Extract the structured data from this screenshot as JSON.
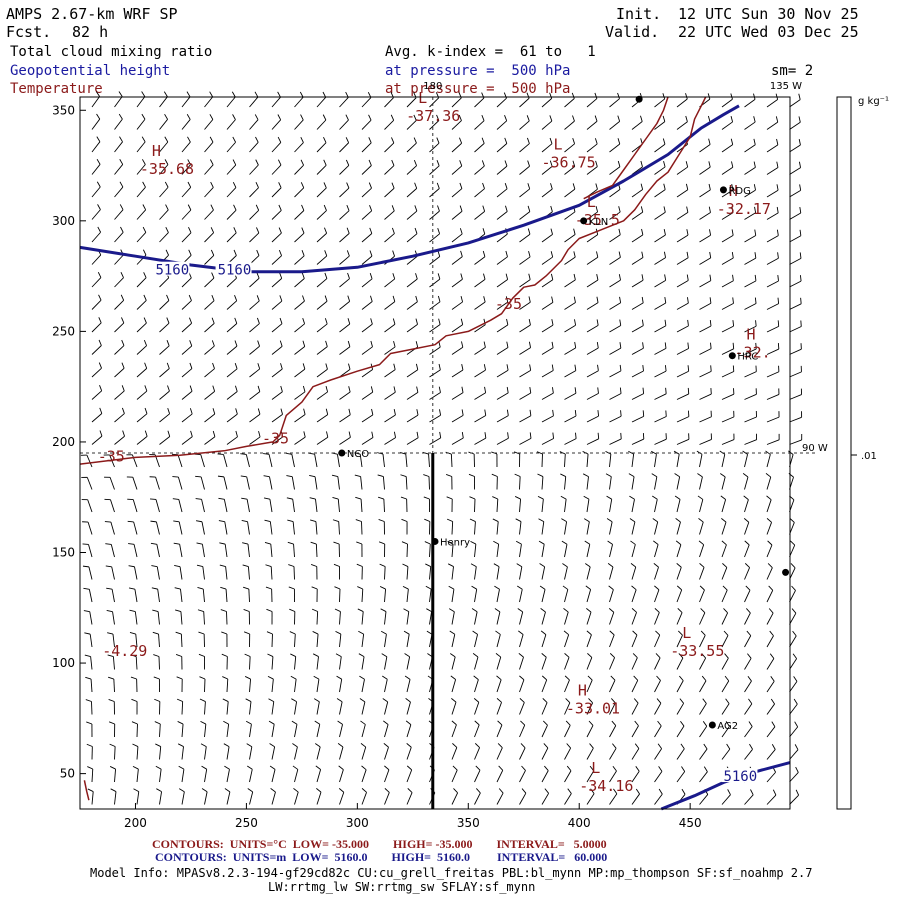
{
  "header": {
    "model": "AMPS 2.67-km WRF SP",
    "init_label": "Init.",
    "init_time": "12 UTC Sun 30 Nov 25",
    "fcst_label": "Fcst.",
    "fcst_hours": "82 h",
    "valid_label": "Valid.",
    "valid_time": "22 UTC Wed 03 Dec 25",
    "field1": "Total cloud mixing ratio",
    "avg_label": "Avg. k-index =  61 to   1",
    "field2": "Geopotential height",
    "field2_level": "at pressure =  500 hPa",
    "smooth": "sm= 2",
    "field3": "Temperature",
    "field3_level": "at pressure =  500 hPa"
  },
  "colorbar": {
    "units": "g kg⁻¹",
    "value": ".01"
  },
  "footer": {
    "line1": "CONTOURS:  UNITS=°C  LOW= -35.000        HIGH= -35.000        INTERVAL=   5.0000",
    "line2": "CONTOURS:  UNITS=m  LOW=  5160.0        HIGH=  5160.0         INTERVAL=   60.000",
    "info1": "Model Info: MPASv8.2.3-194-gf29cd82c CU:cu_grell_freitas PBL:bl_mynn MP:mp_thompson SF:sf_noahmp 2.7",
    "info2": "LW:rrtmg_lw SW:rrtmg_sw SFLAY:sf_mynn"
  },
  "colors": {
    "temperature": "#8b1a1a",
    "height": "#1a1a8b",
    "axis": "#000000",
    "barb": "#000000"
  },
  "chart_data": {
    "type": "contour-map",
    "title": "Total cloud mixing ratio / Geopotential height / Temperature at 500 hPa",
    "xlim": [
      175,
      495
    ],
    "ylim": [
      34,
      356
    ],
    "xticks": [
      200,
      250,
      300,
      350,
      400,
      450
    ],
    "yticks": [
      50,
      100,
      150,
      200,
      250,
      300,
      350
    ],
    "meridian_labels": [
      {
        "text": "180",
        "x": 334,
        "y": 356
      },
      {
        "text": "135 W",
        "x": 490,
        "y": 356
      },
      {
        "text": "90 W",
        "x": 495,
        "y": 195
      }
    ],
    "cross_section": {
      "x": 334,
      "y_top": 195,
      "y_bottom": 34
    },
    "stations": [
      {
        "name": "NCO",
        "x": 293,
        "y": 195
      },
      {
        "name": "Henry",
        "x": 335,
        "y": 155
      },
      {
        "name": "KLN",
        "x": 402,
        "y": 300
      },
      {
        "name": "RDG",
        "x": 465,
        "y": 314
      },
      {
        "name": "HRC",
        "x": 469,
        "y": 239
      },
      {
        "name": "AG2",
        "x": 460,
        "y": 72
      },
      {
        "name": "",
        "x": 427,
        "y": 355
      },
      {
        "name": "",
        "x": 493,
        "y": 141
      }
    ],
    "height_contours": [
      {
        "value": 5160,
        "points": [
          [
            175,
            288
          ],
          [
            200,
            284
          ],
          [
            225,
            280
          ],
          [
            250,
            277
          ],
          [
            275,
            277
          ],
          [
            300,
            279
          ],
          [
            325,
            284
          ],
          [
            350,
            290
          ],
          [
            375,
            298
          ],
          [
            400,
            307
          ],
          [
            420,
            318
          ],
          [
            440,
            330
          ],
          [
            455,
            342
          ],
          [
            465,
            348
          ],
          [
            472,
            352
          ]
        ]
      },
      {
        "value": 5160,
        "points": [
          [
            437,
            34
          ],
          [
            452,
            40
          ],
          [
            465,
            46
          ],
          [
            480,
            51
          ],
          [
            495,
            55
          ]
        ]
      }
    ],
    "temperature_contours": [
      {
        "value": -35,
        "points": [
          [
            175,
            190
          ],
          [
            200,
            193
          ],
          [
            220,
            194
          ],
          [
            240,
            196
          ],
          [
            250,
            198
          ],
          [
            262,
            200
          ],
          [
            265,
            203
          ],
          [
            268,
            212
          ],
          [
            275,
            218
          ],
          [
            280,
            225
          ],
          [
            288,
            228
          ],
          [
            300,
            232
          ],
          [
            310,
            235
          ],
          [
            315,
            240
          ],
          [
            325,
            242
          ],
          [
            335,
            244
          ],
          [
            340,
            248
          ],
          [
            350,
            250
          ],
          [
            360,
            255
          ],
          [
            365,
            258
          ],
          [
            370,
            265
          ],
          [
            375,
            270
          ],
          [
            380,
            271
          ],
          [
            385,
            275
          ],
          [
            392,
            282
          ],
          [
            395,
            287
          ],
          [
            400,
            292
          ],
          [
            410,
            296
          ],
          [
            420,
            300
          ],
          [
            425,
            305
          ],
          [
            430,
            312
          ],
          [
            435,
            318
          ],
          [
            440,
            322
          ],
          [
            445,
            330
          ],
          [
            450,
            338
          ],
          [
            452,
            346
          ],
          [
            455,
            352
          ],
          [
            457,
            356
          ]
        ]
      },
      {
        "value": -35,
        "points": [
          [
            402,
            310
          ],
          [
            408,
            313
          ],
          [
            415,
            316
          ],
          [
            420,
            323
          ],
          [
            425,
            330
          ],
          [
            430,
            337
          ],
          [
            435,
            344
          ],
          [
            438,
            350
          ],
          [
            440,
            356
          ]
        ]
      },
      {
        "value": -35,
        "points": [
          [
            177,
            47
          ],
          [
            178,
            42
          ],
          [
            179,
            38
          ]
        ]
      }
    ],
    "extrema": [
      {
        "kind": "H",
        "value": "-35.68",
        "x": 202,
        "y": 323
      },
      {
        "kind": "L",
        "value": "-37.36",
        "x": 322,
        "y": 347
      },
      {
        "kind": "L",
        "value": "-36.75",
        "x": 383,
        "y": 326
      },
      {
        "kind": "L",
        "value": "-35.5",
        "x": 398,
        "y": 300
      },
      {
        "kind": "H",
        "value": "-32.17",
        "x": 462,
        "y": 305
      },
      {
        "kind": "H",
        "value": "-32.",
        "x": 470,
        "y": 240
      },
      {
        "kind": "",
        "value": "-35",
        "x": 362,
        "y": 262
      },
      {
        "kind": "",
        "value": "-35",
        "x": 257,
        "y": 201
      },
      {
        "kind": "",
        "value": "-35",
        "x": 183,
        "y": 193
      },
      {
        "kind": "",
        "value": "-4.29",
        "x": 185,
        "y": 105
      },
      {
        "kind": "L",
        "value": "-33.55",
        "x": 441,
        "y": 105
      },
      {
        "kind": "H",
        "value": "-33.01",
        "x": 394,
        "y": 79
      },
      {
        "kind": "L",
        "value": "-34.16",
        "x": 400,
        "y": 44
      }
    ],
    "height_labels": [
      {
        "value": "5160",
        "x": 209,
        "y": 277
      },
      {
        "value": "5160",
        "x": 237,
        "y": 277
      },
      {
        "value": "5160",
        "x": 465,
        "y": 48
      }
    ]
  }
}
